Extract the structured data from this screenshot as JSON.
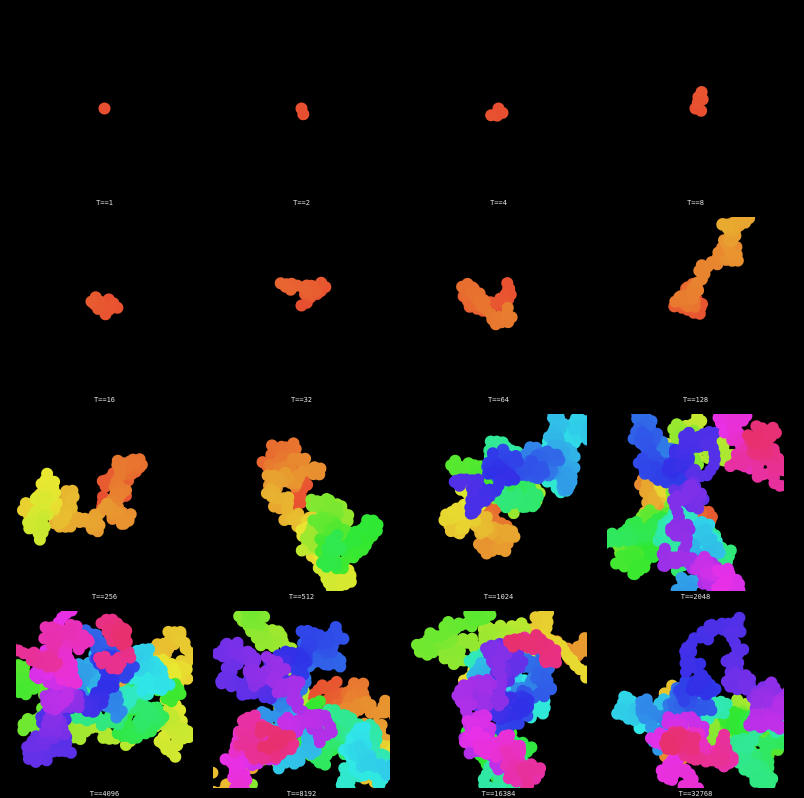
{
  "panels": [
    {
      "label": "T==1"
    },
    {
      "label": "T==2"
    },
    {
      "label": "T==4"
    },
    {
      "label": "T==8"
    },
    {
      "label": "T==16"
    },
    {
      "label": "T==32"
    },
    {
      "label": "T==64"
    },
    {
      "label": "T==128"
    },
    {
      "label": "T==256"
    },
    {
      "label": "T==512"
    },
    {
      "label": "T==1024"
    },
    {
      "label": "T==2048"
    },
    {
      "label": "T==4096"
    },
    {
      "label": "T==8192"
    },
    {
      "label": "T==16384"
    },
    {
      "label": "T==32768"
    }
  ]
}
